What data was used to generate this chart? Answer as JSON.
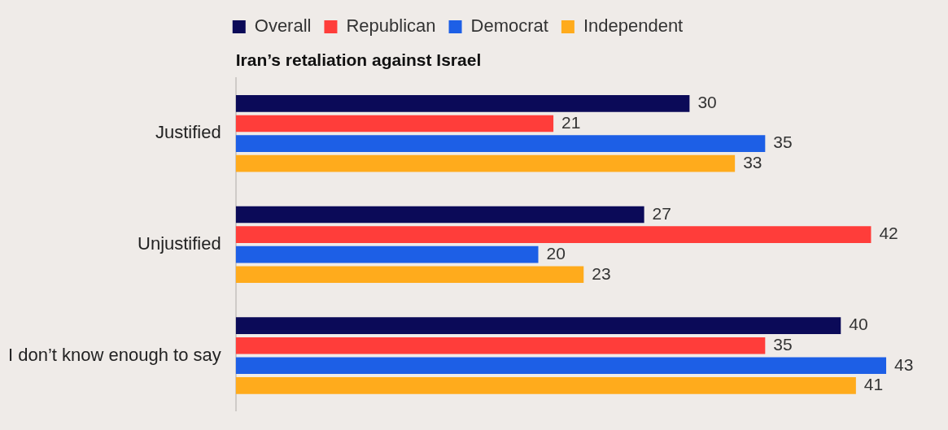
{
  "chart_data": {
    "type": "bar",
    "orientation": "horizontal",
    "title": "Iran’s retaliation against Israel",
    "categories": [
      "Justified",
      "Unjustified",
      "I don’t know enough to say"
    ],
    "series": [
      {
        "name": "Overall",
        "color": "#0b0a58",
        "values": [
          30,
          27,
          40
        ]
      },
      {
        "name": "Republican",
        "color": "#ff3d3a",
        "values": [
          21,
          42,
          35
        ]
      },
      {
        "name": "Democrat",
        "color": "#1d5fe6",
        "values": [
          35,
          20,
          43
        ]
      },
      {
        "name": "Independent",
        "color": "#ffab1c",
        "values": [
          33,
          23,
          41
        ]
      }
    ],
    "data_labels": true,
    "legend": "top"
  }
}
